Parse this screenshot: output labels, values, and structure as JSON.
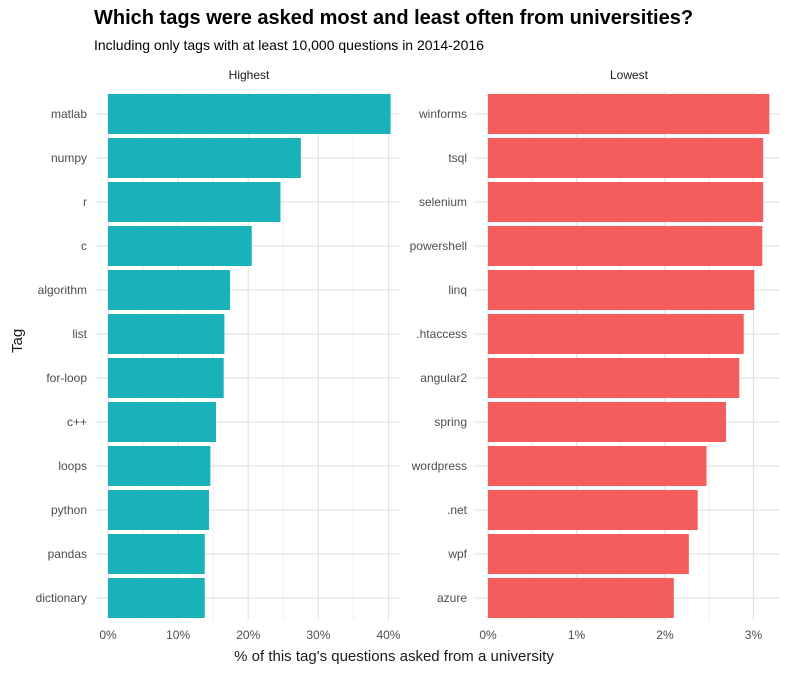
{
  "chart_data": {
    "type": "bar",
    "title": "Which tags were asked most and least often from universities?",
    "subtitle": "Including only tags with at least 10,000 questions in 2014-2016",
    "xlabel": "% of this tag's questions asked from a university",
    "ylabel": "Tag",
    "orientation": "horizontal",
    "grid": true,
    "legend": "none",
    "panels": [
      {
        "name": "Highest",
        "color": "#19B2B8",
        "xlim": [
          0,
          41.5
        ],
        "ticks": [
          0,
          10,
          20,
          30,
          40
        ],
        "tick_labels": [
          "0%",
          "10%",
          "20%",
          "30%",
          "40%"
        ],
        "categories": [
          "matlab",
          "numpy",
          "r",
          "c",
          "algorithm",
          "list",
          "for-loop",
          "c++",
          "loops",
          "python",
          "pandas",
          "dictionary"
        ],
        "values": [
          40.3,
          27.5,
          24.6,
          20.5,
          17.4,
          16.6,
          16.5,
          15.4,
          14.6,
          14.4,
          13.8,
          13.8
        ]
      },
      {
        "name": "Lowest",
        "color": "#F35E5C",
        "xlim": [
          0,
          3.3
        ],
        "ticks": [
          0,
          1,
          2,
          3
        ],
        "tick_labels": [
          "0%",
          "1%",
          "2%",
          "3%"
        ],
        "categories": [
          "winforms",
          "tsql",
          "selenium",
          "powershell",
          "linq",
          ".htaccess",
          "angular2",
          "spring",
          "wordpress",
          ".net",
          "wpf",
          "azure"
        ],
        "values": [
          3.18,
          3.11,
          3.11,
          3.1,
          3.01,
          2.89,
          2.84,
          2.69,
          2.47,
          2.37,
          2.27,
          2.1
        ]
      }
    ]
  }
}
